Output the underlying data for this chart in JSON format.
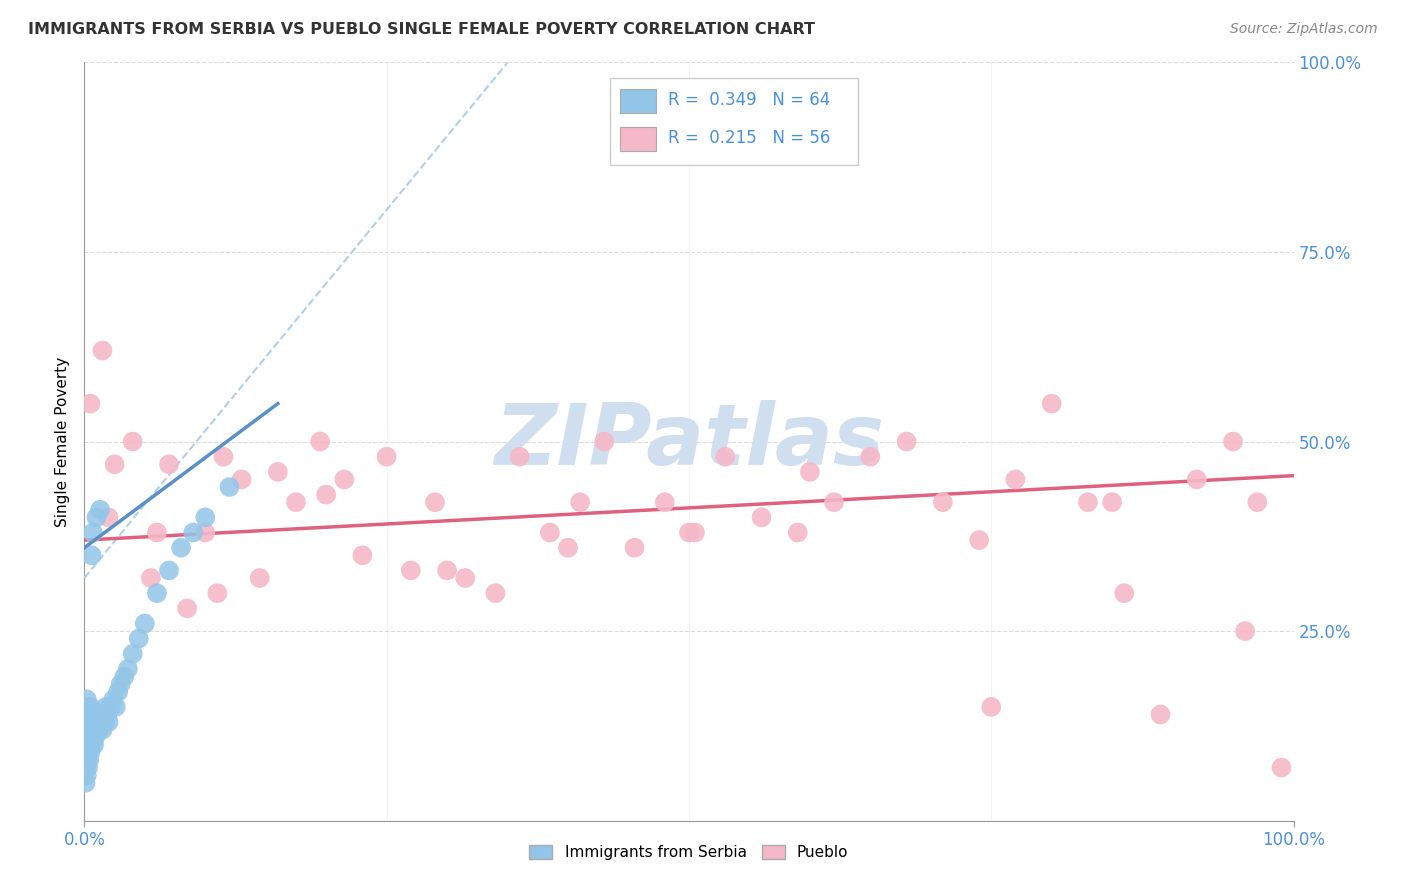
{
  "title": "IMMIGRANTS FROM SERBIA VS PUEBLO SINGLE FEMALE POVERTY CORRELATION CHART",
  "source_text": "Source: ZipAtlas.com",
  "ylabel": "Single Female Poverty",
  "xlim": [
    0.0,
    1.0
  ],
  "ylim": [
    0.0,
    1.0
  ],
  "ytick_positions": [
    0.25,
    0.5,
    0.75,
    1.0
  ],
  "blue_color": "#92c5e8",
  "blue_scatter_color": "#92c5e8",
  "pink_color": "#f5b8c8",
  "pink_scatter_color": "#f5b8c8",
  "trendline_blue_color": "#5a8fc8",
  "trendline_blue_dashed_color": "#b0d0e8",
  "trendline_pink_color": "#e06080",
  "grid_color": "#cccccc",
  "watermark_color": "#d0dff0",
  "title_fontsize": 11.5,
  "tick_color": "#4a90d9",
  "serbia_points_x": [
    0.001,
    0.001,
    0.001,
    0.001,
    0.001,
    0.002,
    0.002,
    0.002,
    0.002,
    0.002,
    0.002,
    0.003,
    0.003,
    0.003,
    0.003,
    0.003,
    0.004,
    0.004,
    0.004,
    0.004,
    0.005,
    0.005,
    0.005,
    0.005,
    0.006,
    0.006,
    0.006,
    0.007,
    0.007,
    0.007,
    0.008,
    0.008,
    0.008,
    0.009,
    0.009,
    0.01,
    0.01,
    0.011,
    0.012,
    0.013,
    0.013,
    0.014,
    0.015,
    0.016,
    0.017,
    0.018,
    0.019,
    0.02,
    0.022,
    0.024,
    0.026,
    0.028,
    0.03,
    0.033,
    0.036,
    0.04,
    0.045,
    0.05,
    0.06,
    0.07,
    0.08,
    0.09,
    0.1,
    0.12
  ],
  "serbia_points_y": [
    0.05,
    0.07,
    0.09,
    0.11,
    0.13,
    0.06,
    0.08,
    0.1,
    0.12,
    0.14,
    0.16,
    0.07,
    0.09,
    0.11,
    0.13,
    0.15,
    0.08,
    0.1,
    0.12,
    0.14,
    0.09,
    0.11,
    0.13,
    0.15,
    0.1,
    0.12,
    0.35,
    0.11,
    0.13,
    0.38,
    0.1,
    0.12,
    0.14,
    0.11,
    0.13,
    0.12,
    0.4,
    0.13,
    0.12,
    0.14,
    0.41,
    0.13,
    0.12,
    0.14,
    0.13,
    0.15,
    0.14,
    0.13,
    0.15,
    0.16,
    0.15,
    0.17,
    0.18,
    0.19,
    0.2,
    0.22,
    0.24,
    0.26,
    0.3,
    0.33,
    0.36,
    0.38,
    0.4,
    0.44
  ],
  "pueblo_points_x": [
    0.005,
    0.015,
    0.025,
    0.04,
    0.055,
    0.07,
    0.085,
    0.1,
    0.115,
    0.13,
    0.145,
    0.16,
    0.175,
    0.195,
    0.215,
    0.23,
    0.25,
    0.27,
    0.29,
    0.315,
    0.34,
    0.36,
    0.385,
    0.41,
    0.43,
    0.455,
    0.48,
    0.505,
    0.53,
    0.56,
    0.59,
    0.62,
    0.65,
    0.68,
    0.71,
    0.74,
    0.77,
    0.8,
    0.83,
    0.86,
    0.89,
    0.92,
    0.95,
    0.97,
    0.99,
    0.02,
    0.06,
    0.11,
    0.2,
    0.3,
    0.4,
    0.5,
    0.6,
    0.75,
    0.85,
    0.96
  ],
  "pueblo_points_y": [
    0.55,
    0.62,
    0.47,
    0.5,
    0.32,
    0.47,
    0.28,
    0.38,
    0.48,
    0.45,
    0.32,
    0.46,
    0.42,
    0.5,
    0.45,
    0.35,
    0.48,
    0.33,
    0.42,
    0.32,
    0.3,
    0.48,
    0.38,
    0.42,
    0.5,
    0.36,
    0.42,
    0.38,
    0.48,
    0.4,
    0.38,
    0.42,
    0.48,
    0.5,
    0.42,
    0.37,
    0.45,
    0.55,
    0.42,
    0.3,
    0.14,
    0.45,
    0.5,
    0.42,
    0.07,
    0.4,
    0.38,
    0.3,
    0.43,
    0.33,
    0.36,
    0.38,
    0.46,
    0.15,
    0.42,
    0.25
  ],
  "serbia_trend_x0": 0.0,
  "serbia_trend_y0": 0.36,
  "serbia_trend_x1": 0.16,
  "serbia_trend_y1": 0.55,
  "serbia_trend_dashed_x0": 0.0,
  "serbia_trend_dashed_y0": 0.32,
  "serbia_trend_dashed_x1": 0.35,
  "serbia_trend_dashed_y1": 1.0,
  "pueblo_trend_x0": 0.0,
  "pueblo_trend_y0": 0.37,
  "pueblo_trend_x1": 1.0,
  "pueblo_trend_y1": 0.455
}
